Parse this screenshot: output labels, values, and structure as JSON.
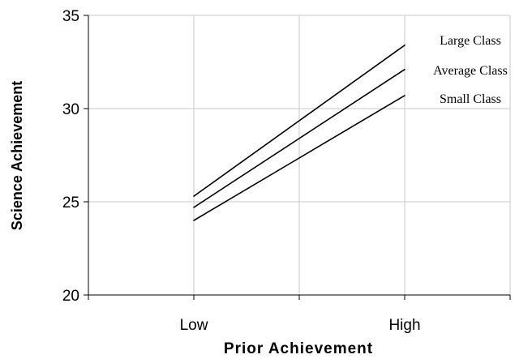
{
  "chart_data": {
    "type": "line",
    "title": "",
    "xlabel": "Prior Achievement",
    "ylabel": "Science Achievement",
    "categories": [
      "Low",
      "High"
    ],
    "ylim": [
      20,
      35
    ],
    "yticks": [
      "20",
      "25",
      "30",
      "35"
    ],
    "grid": true,
    "legend": "direct labels at right end of lines",
    "line_color": "#000000",
    "series": [
      {
        "name": "Large Class",
        "values": [
          25.3,
          33.4
        ]
      },
      {
        "name": "Average Class",
        "values": [
          24.7,
          32.1
        ]
      },
      {
        "name": "Small Class",
        "values": [
          24.0,
          30.7
        ]
      }
    ]
  }
}
